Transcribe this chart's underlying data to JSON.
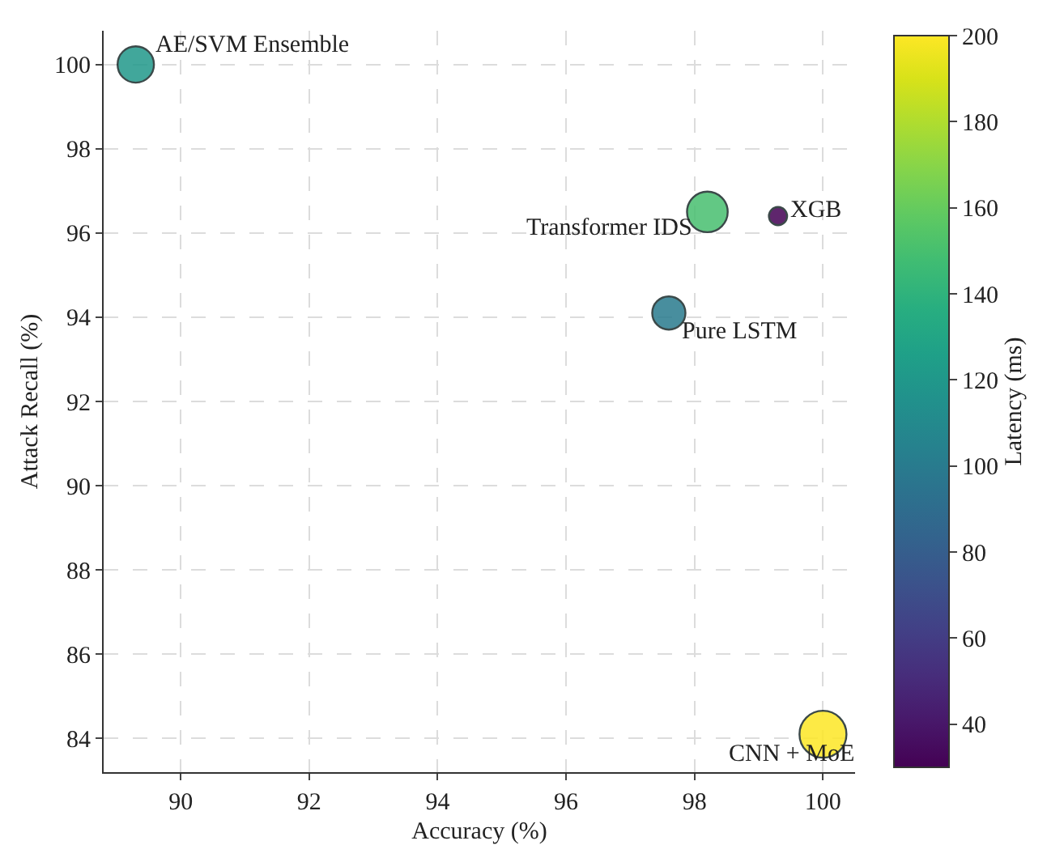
{
  "chart_data": {
    "type": "bubble",
    "xlabel": "Accuracy (%)",
    "ylabel": "Attack Recall (%)",
    "clabel": "Latency (ms)",
    "x": [
      89.3,
      98.2,
      99.3,
      97.6,
      100
    ],
    "values": [
      100,
      96.5,
      96.4,
      94.1,
      84.1
    ],
    "cvalues": [
      120,
      150,
      30,
      100,
      200
    ],
    "sizes": [
      0.6,
      0.75,
      0.15,
      0.5,
      1
    ],
    "annotations": [
      {
        "text": "AE/SVM Ensemble",
        "x": 89.3,
        "y": 100
      },
      {
        "text": "Transformer IDS",
        "x": 98.2,
        "y": 96.5
      },
      {
        "text": "XGB",
        "x": 99.3,
        "y": 96.4
      },
      {
        "text": "Pure LSTM",
        "x": 97.6,
        "y": 94.1
      },
      {
        "text": "CNN + MoE",
        "x": 100,
        "y": 84.1
      }
    ],
    "xlim": [
      88.8,
      100.5
    ],
    "xticks": [
      90,
      92,
      94,
      96,
      98,
      100
    ],
    "ylim": [
      83.2,
      100.8
    ],
    "yticks": [
      84,
      86,
      88,
      90,
      92,
      94,
      96,
      98,
      100
    ],
    "clim": [
      30,
      200
    ],
    "cticks": [
      40,
      60,
      80,
      100,
      120,
      140,
      160,
      180,
      200
    ],
    "grid": true
  }
}
